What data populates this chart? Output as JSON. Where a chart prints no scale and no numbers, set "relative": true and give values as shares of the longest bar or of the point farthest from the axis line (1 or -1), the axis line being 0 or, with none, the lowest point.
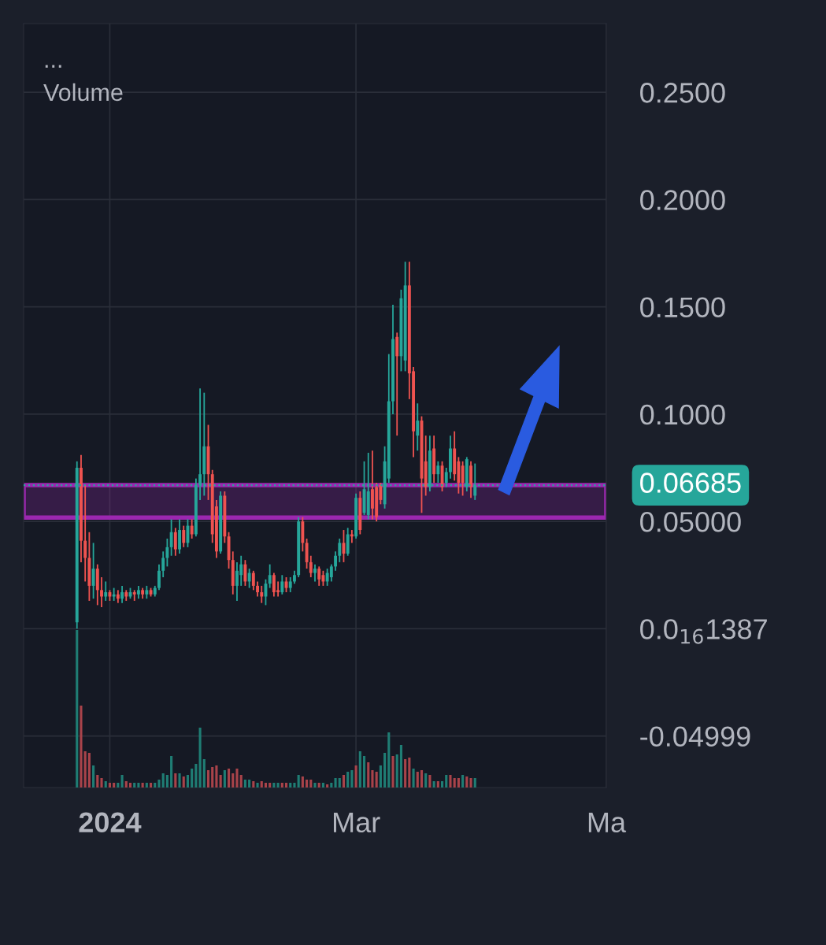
{
  "chart_data": [
    {
      "type": "candlestick",
      "x": [
        "2023-12-24",
        "2023-12-25",
        "2023-12-26",
        "2023-12-27",
        "2023-12-28",
        "2023-12-29",
        "2023-12-30",
        "2023-12-31",
        "2024-01-01",
        "2024-01-02",
        "2024-01-03",
        "2024-01-04",
        "2024-01-05",
        "2024-01-06",
        "2024-01-07",
        "2024-01-08",
        "2024-01-09",
        "2024-01-10",
        "2024-01-11",
        "2024-01-12",
        "2024-01-13",
        "2024-01-14",
        "2024-01-15",
        "2024-01-16",
        "2024-01-17",
        "2024-01-18",
        "2024-01-19",
        "2024-01-20",
        "2024-01-21",
        "2024-01-22",
        "2024-01-23",
        "2024-01-24",
        "2024-01-25",
        "2024-01-26",
        "2024-01-27",
        "2024-01-28",
        "2024-01-29",
        "2024-01-30",
        "2024-01-31",
        "2024-02-01",
        "2024-02-02",
        "2024-02-03",
        "2024-02-04",
        "2024-02-05",
        "2024-02-06",
        "2024-02-07",
        "2024-02-08",
        "2024-02-09",
        "2024-02-10",
        "2024-02-11",
        "2024-02-12",
        "2024-02-13",
        "2024-02-14",
        "2024-02-15",
        "2024-02-16",
        "2024-02-17",
        "2024-02-18",
        "2024-02-19",
        "2024-02-20",
        "2024-02-21",
        "2024-02-22",
        "2024-02-23",
        "2024-02-24",
        "2024-02-25",
        "2024-02-26",
        "2024-02-27",
        "2024-02-28",
        "2024-02-29",
        "2024-03-01",
        "2024-03-02",
        "2024-03-03",
        "2024-03-04",
        "2024-03-05",
        "2024-03-06",
        "2024-03-07",
        "2024-03-08",
        "2024-03-09",
        "2024-03-10",
        "2024-03-11",
        "2024-03-12",
        "2024-03-13",
        "2024-03-14",
        "2024-03-15",
        "2024-03-16",
        "2024-03-17",
        "2024-03-18",
        "2024-03-19",
        "2024-03-20",
        "2024-03-21",
        "2024-03-22",
        "2024-03-23",
        "2024-03-24",
        "2024-03-25",
        "2024-03-26",
        "2024-03-27",
        "2024-03-28",
        "2024-03-29",
        "2024-03-30"
      ],
      "ohlc": [
        [
          0.003,
          0.078,
          0.0,
          0.075
        ],
        [
          0.075,
          0.081,
          0.031,
          0.041
        ],
        [
          0.041,
          0.067,
          0.022,
          0.033
        ],
        [
          0.033,
          0.045,
          0.013,
          0.02
        ],
        [
          0.02,
          0.04,
          0.014,
          0.028
        ],
        [
          0.028,
          0.03,
          0.011,
          0.018
        ],
        [
          0.018,
          0.024,
          0.01,
          0.015
        ],
        [
          0.015,
          0.022,
          0.013,
          0.017
        ],
        [
          0.017,
          0.018,
          0.013,
          0.015
        ],
        [
          0.015,
          0.019,
          0.013,
          0.016
        ],
        [
          0.016,
          0.018,
          0.012,
          0.014
        ],
        [
          0.014,
          0.02,
          0.012,
          0.017
        ],
        [
          0.017,
          0.018,
          0.013,
          0.015
        ],
        [
          0.015,
          0.019,
          0.014,
          0.017
        ],
        [
          0.017,
          0.018,
          0.013,
          0.016
        ],
        [
          0.016,
          0.02,
          0.014,
          0.018
        ],
        [
          0.018,
          0.019,
          0.014,
          0.016
        ],
        [
          0.016,
          0.02,
          0.014,
          0.018
        ],
        [
          0.018,
          0.019,
          0.015,
          0.016
        ],
        [
          0.016,
          0.02,
          0.015,
          0.019
        ],
        [
          0.019,
          0.03,
          0.018,
          0.027
        ],
        [
          0.027,
          0.036,
          0.024,
          0.033
        ],
        [
          0.033,
          0.042,
          0.029,
          0.038
        ],
        [
          0.038,
          0.051,
          0.034,
          0.045
        ],
        [
          0.045,
          0.047,
          0.034,
          0.037
        ],
        [
          0.037,
          0.051,
          0.035,
          0.046
        ],
        [
          0.046,
          0.048,
          0.038,
          0.04
        ],
        [
          0.04,
          0.051,
          0.038,
          0.048
        ],
        [
          0.048,
          0.051,
          0.042,
          0.044
        ],
        [
          0.044,
          0.07,
          0.043,
          0.067
        ],
        [
          0.067,
          0.112,
          0.06,
          0.072
        ],
        [
          0.072,
          0.11,
          0.062,
          0.085
        ],
        [
          0.085,
          0.095,
          0.06,
          0.072
        ],
        [
          0.072,
          0.074,
          0.04,
          0.044
        ],
        [
          0.057,
          0.06,
          0.033,
          0.036
        ],
        [
          0.036,
          0.064,
          0.035,
          0.062
        ],
        [
          0.062,
          0.064,
          0.04,
          0.043
        ],
        [
          0.043,
          0.045,
          0.028,
          0.032
        ],
        [
          0.032,
          0.036,
          0.016,
          0.02
        ],
        [
          0.02,
          0.031,
          0.013,
          0.027
        ],
        [
          0.025,
          0.034,
          0.02,
          0.03
        ],
        [
          0.03,
          0.032,
          0.02,
          0.022
        ],
        [
          0.022,
          0.028,
          0.019,
          0.026
        ],
        [
          0.026,
          0.027,
          0.018,
          0.02
        ],
        [
          0.02,
          0.022,
          0.015,
          0.017
        ],
        [
          0.017,
          0.02,
          0.012,
          0.015
        ],
        [
          0.015,
          0.023,
          0.011,
          0.021
        ],
        [
          0.021,
          0.03,
          0.019,
          0.025
        ],
        [
          0.025,
          0.026,
          0.015,
          0.017
        ],
        [
          0.018,
          0.022,
          0.015,
          0.017
        ],
        [
          0.017,
          0.025,
          0.016,
          0.022
        ],
        [
          0.022,
          0.024,
          0.017,
          0.019
        ],
        [
          0.019,
          0.024,
          0.017,
          0.022
        ],
        [
          0.022,
          0.027,
          0.021,
          0.025
        ],
        [
          0.025,
          0.052,
          0.024,
          0.05
        ],
        [
          0.05,
          0.052,
          0.036,
          0.04
        ],
        [
          0.04,
          0.042,
          0.028,
          0.031
        ],
        [
          0.031,
          0.034,
          0.024,
          0.026
        ],
        [
          0.026,
          0.03,
          0.022,
          0.028
        ],
        [
          0.028,
          0.029,
          0.02,
          0.023
        ],
        [
          0.025,
          0.027,
          0.02,
          0.022
        ],
        [
          0.022,
          0.028,
          0.02,
          0.026
        ],
        [
          0.024,
          0.03,
          0.022,
          0.029
        ],
        [
          0.029,
          0.036,
          0.027,
          0.034
        ],
        [
          0.034,
          0.042,
          0.031,
          0.04
        ],
        [
          0.04,
          0.046,
          0.031,
          0.035
        ],
        [
          0.035,
          0.047,
          0.034,
          0.044
        ],
        [
          0.044,
          0.046,
          0.04,
          0.043
        ],
        [
          0.043,
          0.063,
          0.042,
          0.061
        ],
        [
          0.061,
          0.064,
          0.044,
          0.046
        ],
        [
          0.054,
          0.078,
          0.053,
          0.065
        ],
        [
          0.053,
          0.082,
          0.051,
          0.064
        ],
        [
          0.065,
          0.083,
          0.051,
          0.056
        ],
        [
          0.066,
          0.068,
          0.05,
          0.052
        ],
        [
          0.067,
          0.068,
          0.058,
          0.06
        ],
        [
          0.058,
          0.085,
          0.056,
          0.078
        ],
        [
          0.07,
          0.128,
          0.068,
          0.106
        ],
        [
          0.106,
          0.151,
          0.1,
          0.135
        ],
        [
          0.136,
          0.138,
          0.09,
          0.127
        ],
        [
          0.127,
          0.158,
          0.12,
          0.154
        ],
        [
          0.125,
          0.171,
          0.12,
          0.16
        ],
        [
          0.16,
          0.171,
          0.107,
          0.119
        ],
        [
          0.12,
          0.122,
          0.08,
          0.092
        ],
        [
          0.09,
          0.105,
          0.083,
          0.097
        ],
        [
          0.097,
          0.099,
          0.054,
          0.07
        ],
        [
          0.078,
          0.09,
          0.062,
          0.066
        ],
        [
          0.066,
          0.09,
          0.064,
          0.083
        ],
        [
          0.084,
          0.09,
          0.068,
          0.072
        ],
        [
          0.072,
          0.078,
          0.068,
          0.076
        ],
        [
          0.076,
          0.078,
          0.064,
          0.066
        ],
        [
          0.068,
          0.075,
          0.066,
          0.073
        ],
        [
          0.073,
          0.09,
          0.07,
          0.084
        ],
        [
          0.084,
          0.092,
          0.069,
          0.072
        ],
        [
          0.078,
          0.08,
          0.063,
          0.068
        ],
        [
          0.076,
          0.078,
          0.062,
          0.068
        ],
        [
          0.066,
          0.08,
          0.064,
          0.079
        ],
        [
          0.076,
          0.078,
          0.061,
          0.066
        ],
        [
          0.062,
          0.077,
          0.06,
          0.06685
        ]
      ],
      "xlim": [
        "2023-12-11",
        "2024-05-01"
      ],
      "xticks": [
        {
          "value": "2024-01-01",
          "label": "2024"
        },
        {
          "value": "2024-03-01",
          "label": "Mar"
        },
        {
          "value": "2024-05-01",
          "label": "Ma"
        }
      ],
      "ylim": [
        -0.074,
        0.282
      ],
      "yticks": [
        {
          "value": 0.25,
          "label": "0.2500"
        },
        {
          "value": 0.2,
          "label": "0.2000"
        },
        {
          "value": 0.15,
          "label": "0.1500"
        },
        {
          "value": 0.1,
          "label": "0.1000"
        },
        {
          "value": 0.05,
          "label": "0.05000"
        },
        {
          "value": 0,
          "label": "0.0$_{16}$1387"
        },
        {
          "value": -0.04999,
          "label": "-0.04999"
        }
      ],
      "grid": true,
      "bands": [
        {
          "axis": "y",
          "from": 0.0518,
          "to": 0.0669,
          "color": "#9c27b0"
        }
      ],
      "ref_lines": [
        {
          "axis": "y",
          "value": 0.06685,
          "label": "0.06685",
          "color": "#26a69a",
          "line_style": "dotted"
        }
      ]
    },
    {
      "type": "bar",
      "relative": true,
      "x": [
        "2023-12-24",
        "2023-12-25",
        "2023-12-26",
        "2023-12-27",
        "2023-12-28",
        "2023-12-29",
        "2023-12-30",
        "2023-12-31",
        "2024-01-01",
        "2024-01-02",
        "2024-01-03",
        "2024-01-04",
        "2024-01-05",
        "2024-01-06",
        "2024-01-07",
        "2024-01-08",
        "2024-01-09",
        "2024-01-10",
        "2024-01-11",
        "2024-01-12",
        "2024-01-13",
        "2024-01-14",
        "2024-01-15",
        "2024-01-16",
        "2024-01-17",
        "2024-01-18",
        "2024-01-19",
        "2024-01-20",
        "2024-01-21",
        "2024-01-22",
        "2024-01-23",
        "2024-01-24",
        "2024-01-25",
        "2024-01-26",
        "2024-01-27",
        "2024-01-28",
        "2024-01-29",
        "2024-01-30",
        "2024-01-31",
        "2024-02-01",
        "2024-02-02",
        "2024-02-03",
        "2024-02-04",
        "2024-02-05",
        "2024-02-06",
        "2024-02-07",
        "2024-02-08",
        "2024-02-09",
        "2024-02-10",
        "2024-02-11",
        "2024-02-12",
        "2024-02-13",
        "2024-02-14",
        "2024-02-15",
        "2024-02-16",
        "2024-02-17",
        "2024-02-18",
        "2024-02-19",
        "2024-02-20",
        "2024-02-21",
        "2024-02-22",
        "2024-02-23",
        "2024-02-24",
        "2024-02-25",
        "2024-02-26",
        "2024-02-27",
        "2024-02-28",
        "2024-02-29",
        "2024-03-01",
        "2024-03-02",
        "2024-03-03",
        "2024-03-04",
        "2024-03-05",
        "2024-03-06",
        "2024-03-07",
        "2024-03-08",
        "2024-03-09",
        "2024-03-10",
        "2024-03-11",
        "2024-03-12",
        "2024-03-13",
        "2024-03-14",
        "2024-03-15",
        "2024-03-16",
        "2024-03-17",
        "2024-03-18",
        "2024-03-19",
        "2024-03-20",
        "2024-03-21",
        "2024-03-22",
        "2024-03-23",
        "2024-03-24",
        "2024-03-25",
        "2024-03-26",
        "2024-03-27",
        "2024-03-28",
        "2024-03-29",
        "2024-03-30"
      ],
      "xlim": [
        "2023-12-11",
        "2024-05-01"
      ],
      "values": [
        1,
        0.52,
        0.23,
        0.22,
        0.14,
        0.08,
        0.06,
        0.04,
        0.03,
        0.03,
        0.03,
        0.08,
        0.04,
        0.03,
        0.03,
        0.03,
        0.03,
        0.03,
        0.03,
        0.03,
        0.05,
        0.09,
        0.08,
        0.2,
        0.09,
        0.09,
        0.07,
        0.08,
        0.12,
        0.15,
        0.38,
        0.18,
        0.11,
        0.13,
        0.14,
        0.08,
        0.11,
        0.12,
        0.09,
        0.12,
        0.08,
        0.05,
        0.05,
        0.04,
        0.03,
        0.04,
        0.03,
        0.03,
        0.03,
        0.03,
        0.03,
        0.03,
        0.03,
        0.03,
        0.08,
        0.07,
        0.05,
        0.05,
        0.03,
        0.03,
        0.03,
        0.02,
        0.03,
        0.06,
        0.06,
        0.08,
        0.1,
        0.11,
        0.14,
        0.23,
        0.2,
        0.16,
        0.11,
        0.1,
        0.14,
        0.22,
        0.35,
        0.2,
        0.21,
        0.27,
        0.18,
        0.19,
        0.12,
        0.1,
        0.11,
        0.09,
        0.08,
        0.04,
        0.04,
        0.04,
        0.08,
        0.08,
        0.06,
        0.06,
        0.08,
        0.07,
        0.06,
        0.06
      ],
      "colors": [
        "#1f7d74",
        "#a8434a",
        "#a8434a",
        "#a8434a",
        "#1f7d74",
        "#a8434a",
        "#a8434a",
        "#1f7d74",
        "#a8434a",
        "#a8434a",
        "#1f7d74",
        "#1f7d74",
        "#a8434a",
        "#a8434a",
        "#1f7d74",
        "#1f7d74",
        "#a8434a",
        "#1f7d74",
        "#a8434a",
        "#1f7d74",
        "#1f7d74",
        "#1f7d74",
        "#1f7d74",
        "#1f7d74",
        "#a8434a",
        "#1f7d74",
        "#a8434a",
        "#1f7d74",
        "#1f7d74",
        "#1f7d74",
        "#1f7d74",
        "#1f7d74",
        "#a8434a",
        "#a8434a",
        "#a8434a",
        "#a8434a",
        "#1f7d74",
        "#a8434a",
        "#a8434a",
        "#a8434a",
        "#a8434a",
        "#1f7d74",
        "#1f7d74",
        "#a8434a",
        "#1f7d74",
        "#a8434a",
        "#a8434a",
        "#a8434a",
        "#1f7d74",
        "#1f7d74",
        "#a8434a",
        "#a8434a",
        "#1f7d74",
        "#1f7d74",
        "#1f7d74",
        "#a8434a",
        "#a8434a",
        "#a8434a",
        "#1f7d74",
        "#a8434a",
        "#1f7d74",
        "#a8434a",
        "#1f7d74",
        "#1f7d74",
        "#1f7d74",
        "#a8434a",
        "#1f7d74",
        "#1f7d74",
        "#a8434a",
        "#1f7d74",
        "#1f7d74",
        "#a8434a",
        "#a8434a",
        "#a8434a",
        "#1f7d74",
        "#1f7d74",
        "#1f7d74",
        "#a8434a",
        "#1f7d74",
        "#1f7d74",
        "#a8434a",
        "#a8434a",
        "#1f7d74",
        "#a8434a",
        "#a8434a",
        "#1f7d74",
        "#a8434a",
        "#1f7d74",
        "#a8434a",
        "#1f7d74",
        "#1f7d74",
        "#a8434a",
        "#a8434a",
        "#a8434a",
        "#1f7d74",
        "#a8434a",
        "#a8434a",
        "#1f7d74"
      ],
      "annotations": [
        "...",
        "Volume"
      ]
    }
  ]
}
